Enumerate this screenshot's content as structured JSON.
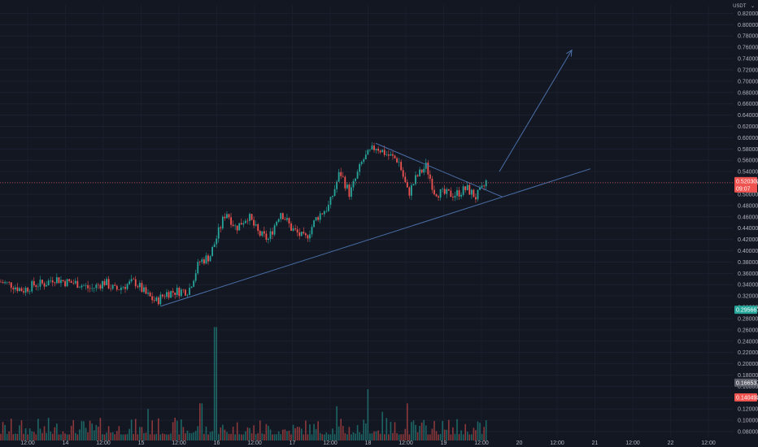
{
  "header": {
    "currency": "USDT",
    "menu": "⌄"
  },
  "colors": {
    "background": "#131722",
    "up": "#26a69a",
    "down": "#ef5350",
    "trendline": "#4a6fa8",
    "pricetag": "#ef5350",
    "greentag": "#26a69a",
    "greytag": "#5d606b"
  },
  "tags": {
    "current_price": "0.520300",
    "countdown": "09:07",
    "green_level": "0.295667",
    "grey_level": "0.166537",
    "red_level": "0.140493"
  },
  "chart_data": {
    "type": "candlestick",
    "currency": "USDT",
    "ylim": [
      0.07,
      0.835
    ],
    "y_ticks": [
      "0.820000",
      "0.800000",
      "0.780000",
      "0.760000",
      "0.740000",
      "0.720000",
      "0.700000",
      "0.680000",
      "0.660000",
      "0.640000",
      "0.620000",
      "0.600000",
      "0.580000",
      "0.560000",
      "0.540000",
      "0.520000",
      "0.500000",
      "0.480000",
      "0.460000",
      "0.440000",
      "0.420000",
      "0.400000",
      "0.380000",
      "0.360000",
      "0.340000",
      "0.320000",
      "0.300000",
      "0.280000",
      "0.260000",
      "0.240000",
      "0.220000",
      "0.200000",
      "0.180000",
      "0.160000",
      "0.140000",
      "0.120000",
      "0.100000",
      "0.080000"
    ],
    "x_ticks": [
      "12:00",
      "14",
      "12:00",
      "15",
      "12:00",
      "16",
      "12:00",
      "17",
      "12:00",
      "18",
      "12:00",
      "19",
      "12:00",
      "20",
      "12:00",
      "21",
      "12:00",
      "22",
      "12:00"
    ],
    "price_path": [
      [
        0,
        0.345
      ],
      [
        14,
        0.34
      ],
      [
        28,
        0.33
      ],
      [
        42,
        0.34
      ],
      [
        56,
        0.342
      ],
      [
        66,
        0.352
      ],
      [
        80,
        0.345
      ],
      [
        96,
        0.342
      ],
      [
        112,
        0.332
      ],
      [
        128,
        0.345
      ],
      [
        142,
        0.33
      ],
      [
        152,
        0.338
      ],
      [
        166,
        0.345
      ],
      [
        180,
        0.322
      ],
      [
        192,
        0.31
      ],
      [
        204,
        0.325
      ],
      [
        216,
        0.328
      ],
      [
        232,
        0.33
      ],
      [
        245,
        0.38
      ],
      [
        258,
        0.39
      ],
      [
        268,
        0.43
      ],
      [
        278,
        0.47
      ],
      [
        290,
        0.44
      ],
      [
        305,
        0.462
      ],
      [
        318,
        0.43
      ],
      [
        330,
        0.42
      ],
      [
        345,
        0.47
      ],
      [
        358,
        0.44
      ],
      [
        375,
        0.42
      ],
      [
        390,
        0.46
      ],
      [
        405,
        0.48
      ],
      [
        418,
        0.54
      ],
      [
        430,
        0.5
      ],
      [
        446,
        0.56
      ],
      [
        462,
        0.585
      ],
      [
        476,
        0.57
      ],
      [
        490,
        0.56
      ],
      [
        502,
        0.5
      ],
      [
        512,
        0.53
      ],
      [
        524,
        0.55
      ],
      [
        534,
        0.505
      ],
      [
        546,
        0.5
      ],
      [
        560,
        0.5
      ],
      [
        574,
        0.51
      ],
      [
        585,
        0.495
      ],
      [
        594,
        0.51
      ],
      [
        600,
        0.53
      ]
    ],
    "volume_spikes": [
      [
        265,
        0.265
      ],
      [
        247,
        0.13
      ],
      [
        182,
        0.12
      ],
      [
        500,
        0.13
      ],
      [
        413,
        0.125
      ],
      [
        452,
        0.155
      ],
      [
        470,
        0.115
      ],
      [
        598,
        0.1
      ]
    ],
    "ascending_trendline": [
      [
        198,
        0.302
      ],
      [
        726,
        0.545
      ]
    ],
    "descending_trendline": [
      [
        462,
        0.59
      ],
      [
        618,
        0.495
      ]
    ],
    "projection_arrow": [
      [
        614,
        0.54
      ],
      [
        703,
        0.755
      ]
    ]
  }
}
